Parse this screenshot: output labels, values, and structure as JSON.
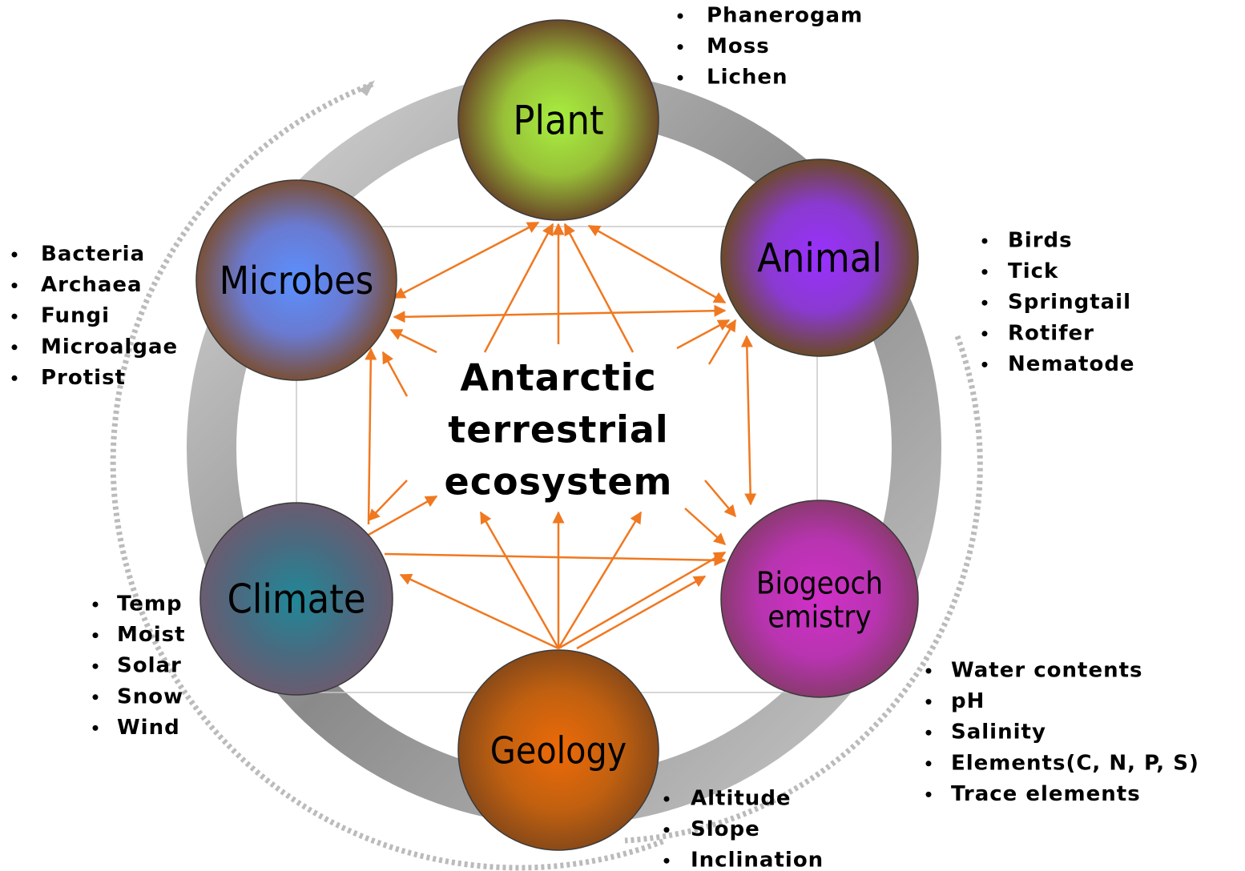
{
  "center": [
    "Antarctic",
    "terrestrial",
    "ecosystem"
  ],
  "nodes": [
    {
      "label": [
        "Plant"
      ],
      "items": [
        "Phanerogam",
        "Moss",
        "Lichen"
      ]
    },
    {
      "label": [
        "Animal"
      ],
      "items": [
        "Birds",
        "Tick",
        "Springtail",
        "Rotifer",
        "Nematode"
      ]
    },
    {
      "label": [
        "Biogeoch",
        "emistry"
      ],
      "items": [
        "Water contents",
        "pH",
        "Salinity",
        "Elements(C, N, P, S)",
        "Trace elements"
      ]
    },
    {
      "label": [
        "Geology"
      ],
      "items": [
        "Altitude",
        "Slope",
        "Inclination"
      ]
    },
    {
      "label": [
        "Climate"
      ],
      "items": [
        "Temp",
        "Moist",
        "Solar",
        "Snow",
        "Wind"
      ]
    },
    {
      "label": [
        "Microbes"
      ],
      "items": [
        "Bacteria",
        "Archaea",
        "Fungi",
        "Microalgae",
        "Protist"
      ]
    }
  ]
}
